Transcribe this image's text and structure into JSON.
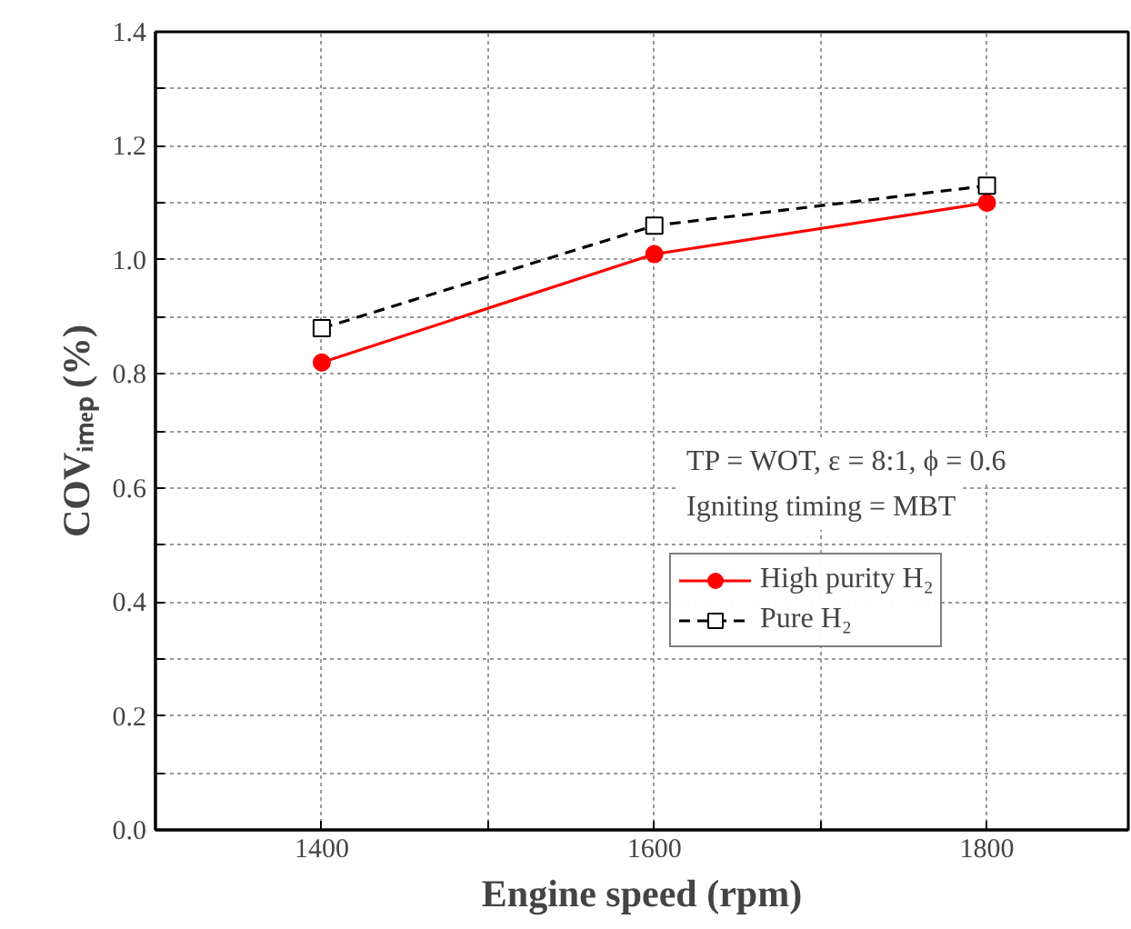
{
  "chart_data": {
    "type": "line",
    "xlabel": "Engine speed (rpm)",
    "ylabel": "COVᵢₘₑₚ (%)",
    "x": [
      1400,
      1600,
      1800
    ],
    "series": [
      {
        "name": "High purity H₂",
        "color": "#ff0000",
        "values": [
          0.82,
          1.01,
          1.1
        ],
        "marker": "circle",
        "line_style": "solid"
      },
      {
        "name": "Pure H₂",
        "color": "#000000",
        "values": [
          0.88,
          1.06,
          1.13
        ],
        "marker": "square",
        "line_style": "dashed"
      }
    ],
    "xlim": [
      1300,
      1885
    ],
    "xticks": [
      {
        "value": 1300,
        "label": null
      },
      1400,
      {
        "value": 1500,
        "label": null
      },
      1600,
      {
        "value": 1700,
        "label": null
      },
      1800
    ],
    "ylim": [
      0,
      1.4
    ],
    "yticks": [
      {
        "value": 0,
        "label": "0.0"
      },
      {
        "value": 0.1,
        "label": null
      },
      0.2,
      {
        "value": 0.3,
        "label": null
      },
      0.4,
      {
        "value": 0.5,
        "label": null
      },
      0.6,
      {
        "value": 0.7,
        "label": null
      },
      0.8,
      {
        "value": 0.9,
        "label": null
      },
      {
        "value": 1.0,
        "label": "1.0"
      },
      {
        "value": 1.1,
        "label": null
      },
      1.2,
      {
        "value": 1.3,
        "label": null
      },
      1.4
    ],
    "grid": true,
    "legend": "right",
    "annotations": [
      "TP = WOT, ε = 8:1, ϕ = 0.6",
      "Igniting timing = MBT"
    ]
  }
}
